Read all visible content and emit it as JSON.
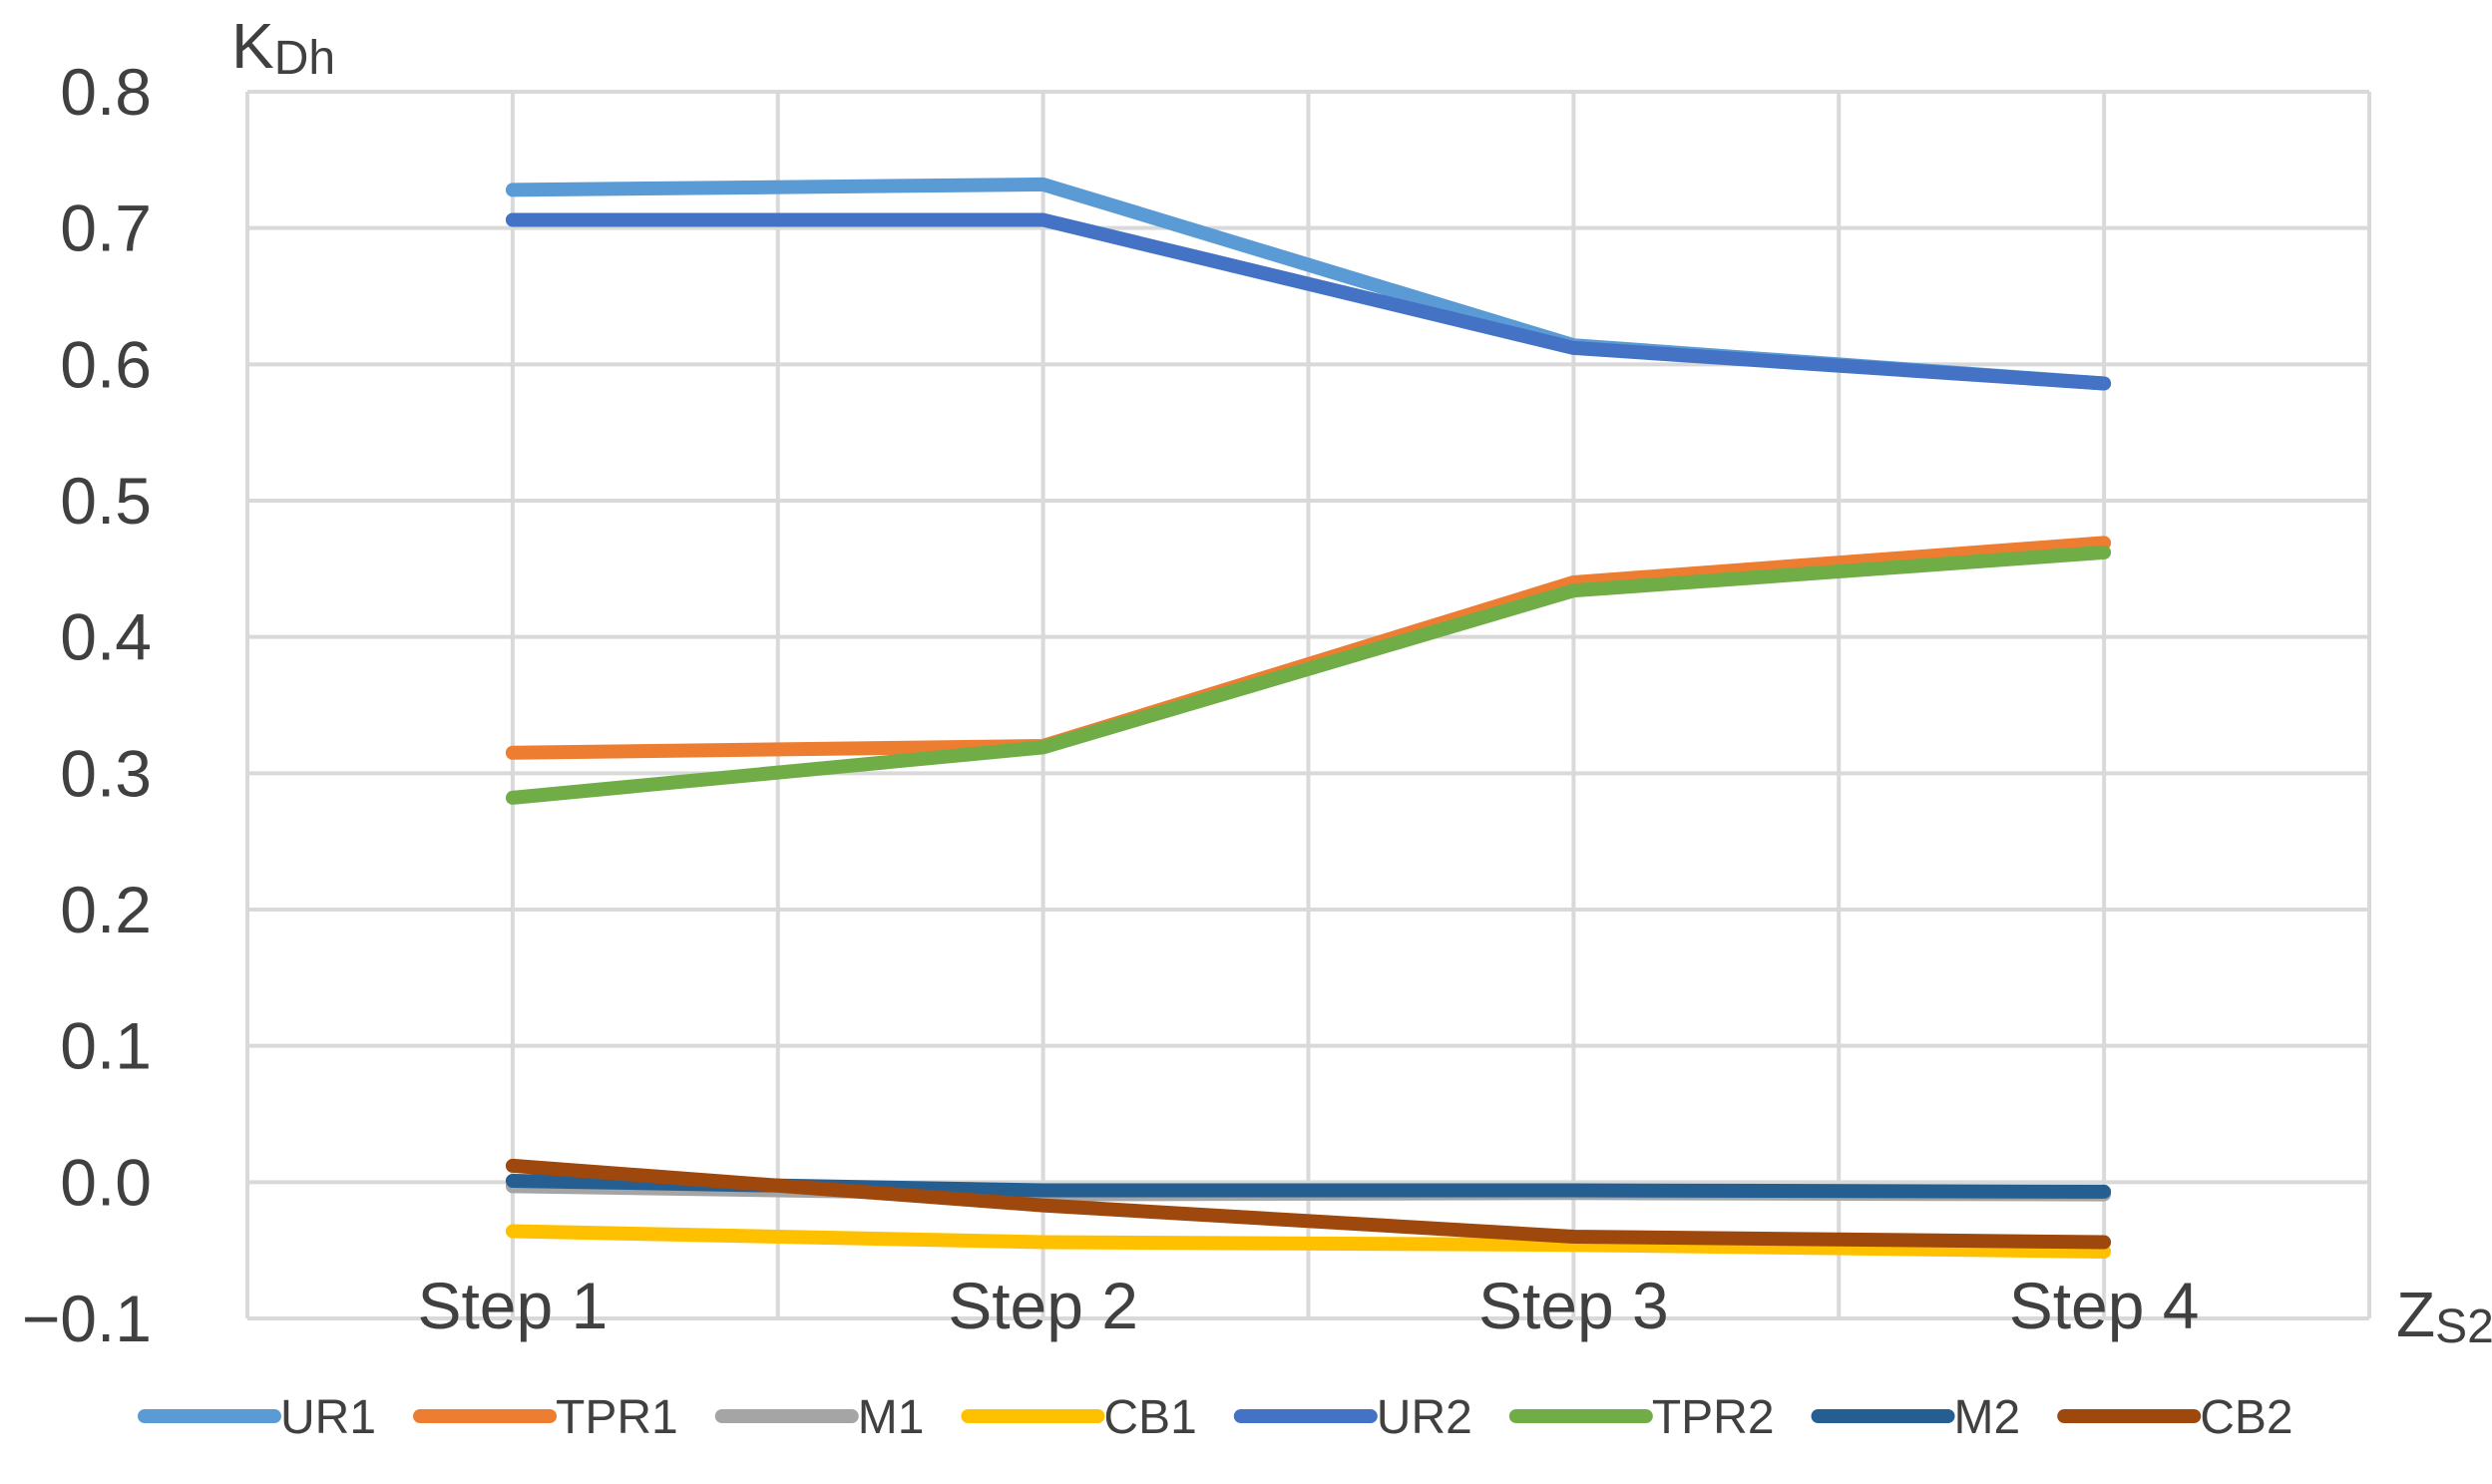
{
  "chart_data": {
    "type": "line",
    "categories": [
      "Step 1",
      "Step 2",
      "Step 3",
      "Step 4"
    ],
    "ylabel": {
      "main": "K",
      "sub": "Dh"
    },
    "xlabel": {
      "main": "Z",
      "sub": "S2"
    },
    "ylim": [
      -0.1,
      0.8
    ],
    "yticks": [
      "0.8",
      "0.7",
      "0.6",
      "0.5",
      "0.4",
      "0.3",
      "0.2",
      "0.1",
      "0.0",
      "−0.1"
    ],
    "ytick_values": [
      0.8,
      0.7,
      0.6,
      0.5,
      0.4,
      0.3,
      0.2,
      0.1,
      0.0,
      -0.1
    ],
    "grid": true,
    "legend_position": "bottom",
    "series": [
      {
        "name": "UR1",
        "color": "#5B9BD5",
        "values": [
          0.728,
          0.732,
          0.614,
          0.586
        ]
      },
      {
        "name": "TPR1",
        "color": "#ED7D31",
        "values": [
          0.315,
          0.32,
          0.44,
          0.469
        ]
      },
      {
        "name": "M1",
        "color": "#A5A5A5",
        "values": [
          -0.003,
          -0.009,
          -0.008,
          -0.009
        ]
      },
      {
        "name": "CB1",
        "color": "#FFC000",
        "values": [
          -0.036,
          -0.044,
          -0.046,
          -0.051
        ]
      },
      {
        "name": "UR2",
        "color": "#4472C4",
        "values": [
          0.706,
          0.706,
          0.612,
          0.586
        ]
      },
      {
        "name": "TPR2",
        "color": "#70AD47",
        "values": [
          0.282,
          0.319,
          0.434,
          0.462
        ]
      },
      {
        "name": "M2",
        "color": "#255E91",
        "values": [
          0.001,
          -0.006,
          -0.006,
          -0.007
        ]
      },
      {
        "name": "CB2",
        "color": "#9E480E",
        "values": [
          0.012,
          -0.017,
          -0.04,
          -0.044
        ]
      }
    ]
  }
}
